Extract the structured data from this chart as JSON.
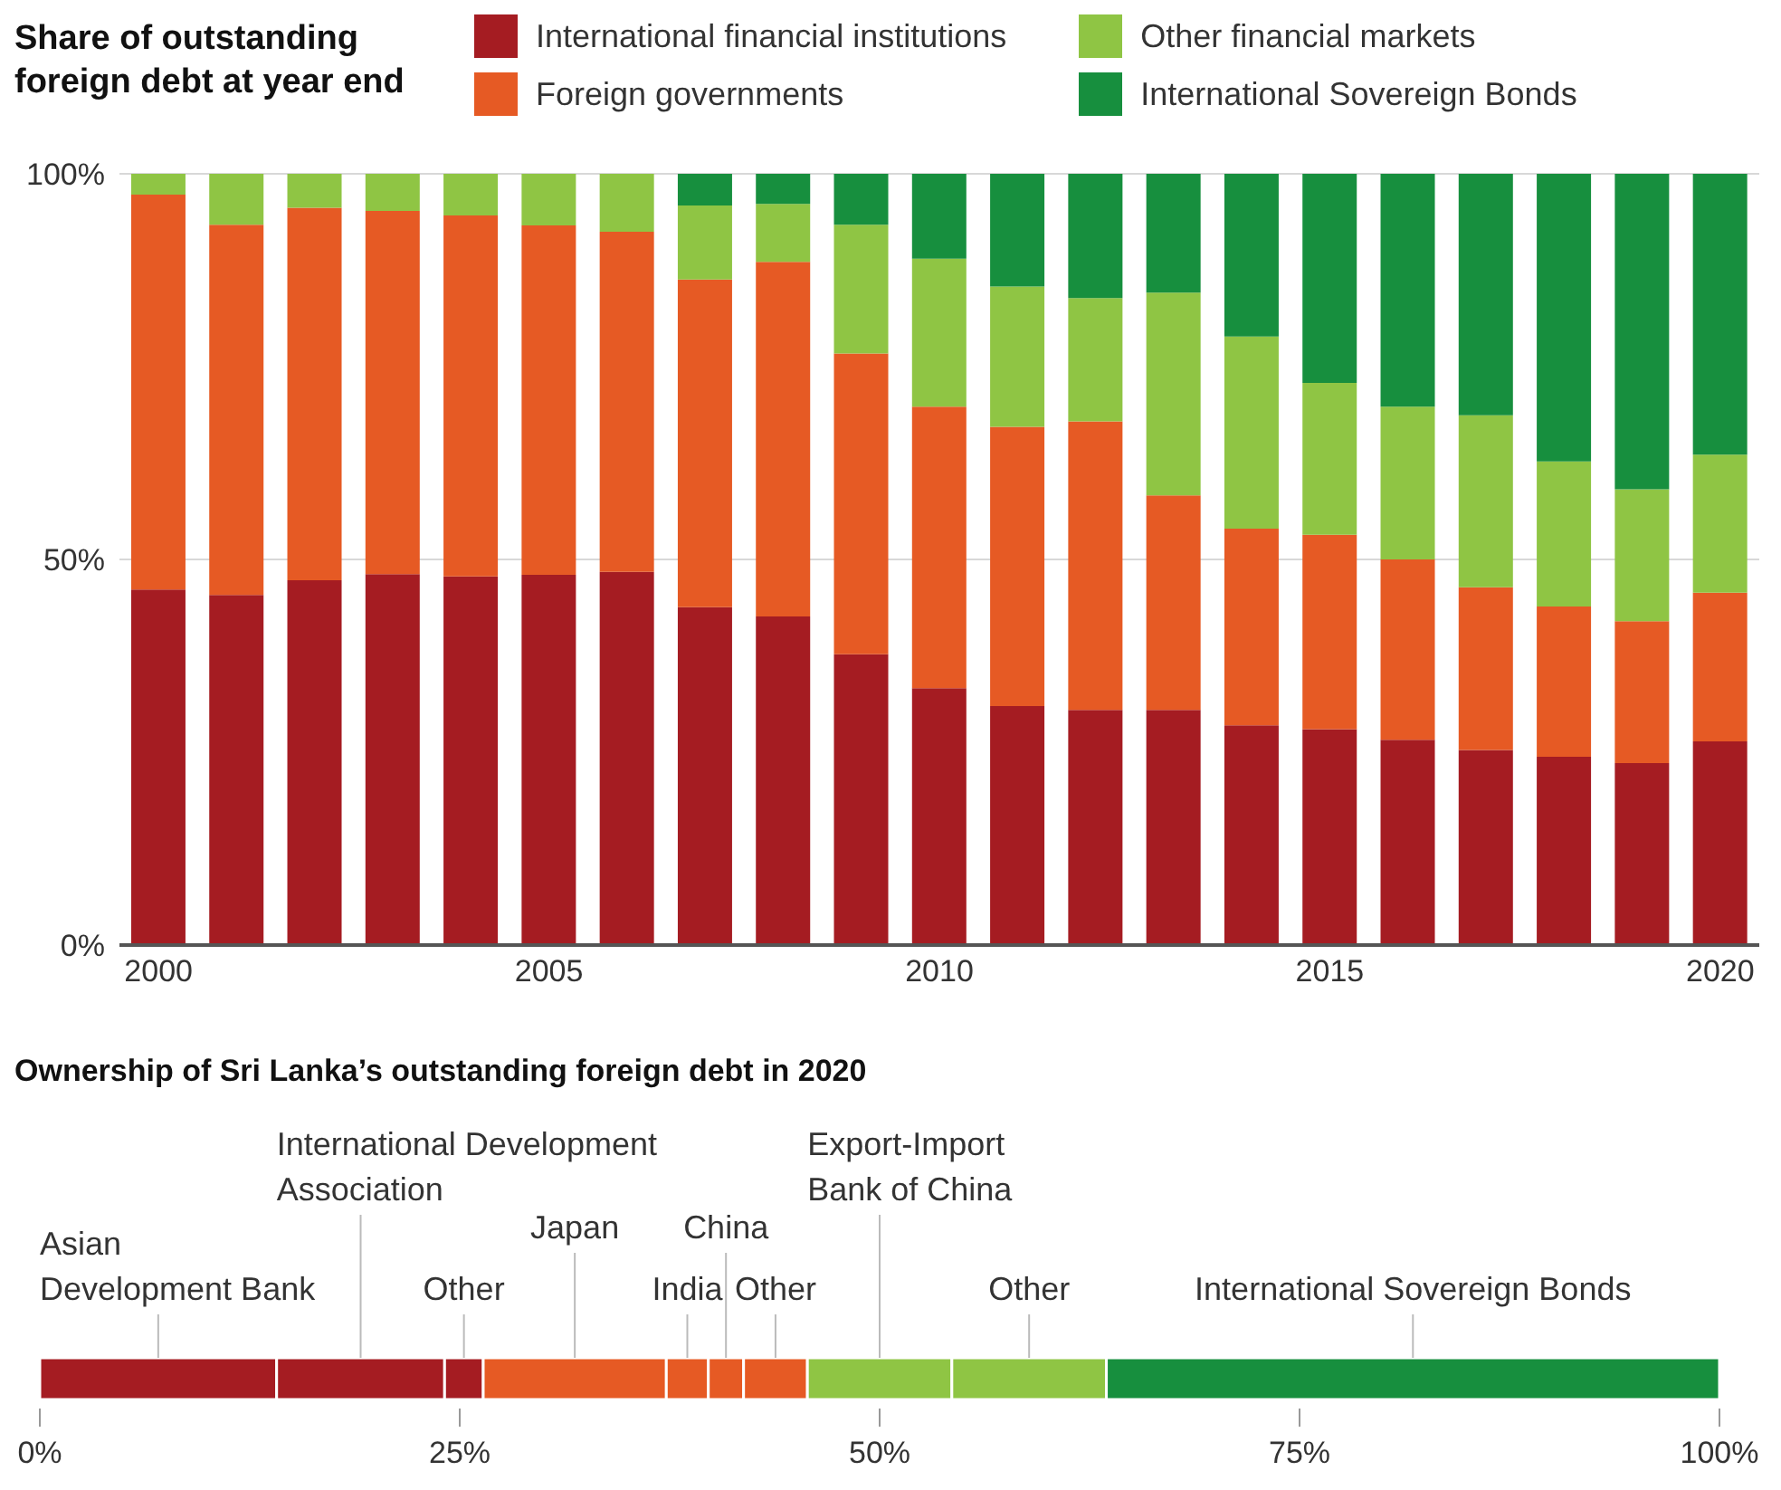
{
  "chart_data": [
    {
      "type": "bar",
      "title": "Share of outstanding foreign debt at year end",
      "stacked": true,
      "legend": "top",
      "grid": "y",
      "categories": [
        "2000",
        null,
        null,
        null,
        null,
        "2005",
        null,
        null,
        null,
        null,
        "2010",
        null,
        null,
        null,
        null,
        "2015",
        null,
        null,
        null,
        null,
        "2020"
      ],
      "ylim": [
        0,
        100
      ],
      "yticks": [
        {
          "value": 0,
          "label": "0%"
        },
        {
          "value": 50,
          "label": "50%"
        },
        {
          "value": 100,
          "label": "100%"
        }
      ],
      "series": [
        {
          "name": "International financial institutions",
          "color": "#a51c22",
          "values": [
            46.1,
            45.4,
            47.3,
            48.1,
            47.8,
            48.0,
            48.4,
            43.8,
            42.6,
            37.7,
            33.3,
            31.0,
            30.5,
            30.5,
            28.5,
            28.0,
            26.6,
            25.3,
            24.4,
            23.6,
            26.4
          ]
        },
        {
          "name": "Foreign governments",
          "color": "#e65a24",
          "values": [
            51.2,
            48.0,
            48.3,
            47.1,
            46.8,
            45.3,
            44.1,
            42.5,
            46.0,
            39.0,
            36.5,
            36.2,
            37.4,
            27.8,
            25.5,
            25.2,
            23.4,
            21.1,
            19.5,
            18.4,
            19.3
          ]
        },
        {
          "name": "Other financial markets",
          "color": "#8fc544",
          "values": [
            2.7,
            6.6,
            4.4,
            4.8,
            5.4,
            6.7,
            7.5,
            9.6,
            7.5,
            16.7,
            19.2,
            18.2,
            16.0,
            26.3,
            24.9,
            19.7,
            19.8,
            22.3,
            18.8,
            17.1,
            17.9
          ]
        },
        {
          "name": "International Sovereign Bonds",
          "color": "#178f3e",
          "values": [
            0,
            0,
            0,
            0,
            0,
            0,
            0,
            4.1,
            3.9,
            6.6,
            11.0,
            14.6,
            16.1,
            15.4,
            21.1,
            27.1,
            30.2,
            31.3,
            37.3,
            40.9,
            36.4
          ]
        }
      ]
    },
    {
      "type": "bar",
      "title": "Ownership of Sri Lanka’s outstanding foreign debt in 2020",
      "stacked": true,
      "orientation": "horizontal",
      "categories": [
        null
      ],
      "xlim": [
        0,
        100
      ],
      "xticks": [
        {
          "value": 0,
          "label": "0%"
        },
        {
          "value": 25,
          "label": "25%"
        },
        {
          "value": 50,
          "label": "50%"
        },
        {
          "value": 75,
          "label": "75%"
        },
        {
          "value": 100,
          "label": "100%"
        }
      ],
      "series": [
        {
          "name": "Asian Development Bank",
          "color": "#a51c22",
          "values": [
            14.1
          ]
        },
        {
          "name": "International Development Association",
          "color": "#a51c22",
          "values": [
            10.0
          ]
        },
        {
          "name": "Other",
          "color": "#a51c22",
          "values": [
            2.3
          ]
        },
        {
          "name": "Japan",
          "color": "#e65a24",
          "values": [
            10.9
          ]
        },
        {
          "name": "India",
          "color": "#e65a24",
          "values": [
            2.5
          ]
        },
        {
          "name": "China",
          "color": "#e65a24",
          "values": [
            2.1
          ]
        },
        {
          "name": "Other",
          "color": "#e65a24",
          "values": [
            3.8
          ]
        },
        {
          "name": "Export-Import Bank of China",
          "color": "#8fc544",
          "values": [
            8.6
          ]
        },
        {
          "name": "Other",
          "color": "#8fc544",
          "values": [
            9.2
          ]
        },
        {
          "name": "International Sovereign Bonds",
          "color": "#178f3e",
          "values": [
            36.5
          ]
        }
      ]
    }
  ]
}
